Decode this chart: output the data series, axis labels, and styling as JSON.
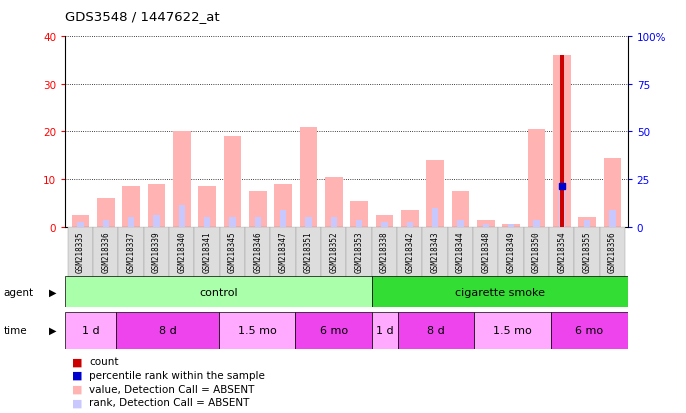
{
  "title": "GDS3548 / 1447622_at",
  "samples": [
    "GSM218335",
    "GSM218336",
    "GSM218337",
    "GSM218339",
    "GSM218340",
    "GSM218341",
    "GSM218345",
    "GSM218346",
    "GSM218347",
    "GSM218351",
    "GSM218352",
    "GSM218353",
    "GSM218338",
    "GSM218342",
    "GSM218343",
    "GSM218344",
    "GSM218348",
    "GSM218349",
    "GSM218350",
    "GSM218354",
    "GSM218355",
    "GSM218356"
  ],
  "pink_values": [
    2.5,
    6.0,
    8.5,
    9.0,
    20.0,
    8.5,
    19.0,
    7.5,
    9.0,
    21.0,
    10.5,
    5.5,
    2.5,
    3.5,
    14.0,
    7.5,
    1.5,
    0.5,
    20.5,
    36.0,
    2.0,
    14.5
  ],
  "blue_rank_values": [
    1.0,
    1.5,
    2.0,
    2.5,
    4.5,
    2.0,
    2.0,
    2.0,
    3.5,
    2.0,
    2.0,
    1.5,
    1.0,
    1.0,
    4.0,
    1.5,
    0.5,
    0.5,
    1.5,
    8.5,
    1.5,
    3.5
  ],
  "red_count": [
    0,
    0,
    0,
    0,
    0,
    0,
    0,
    0,
    0,
    0,
    0,
    0,
    0,
    0,
    0,
    0,
    0,
    0,
    0,
    36.0,
    0,
    0
  ],
  "blue_dot": [
    0,
    0,
    0,
    0,
    0,
    0,
    0,
    0,
    0,
    0,
    0,
    0,
    0,
    0,
    0,
    0,
    0,
    0,
    0,
    8.5,
    0,
    0
  ],
  "ylim_left": [
    0,
    40
  ],
  "ylim_right": [
    0,
    100
  ],
  "yticks_left": [
    0,
    10,
    20,
    30,
    40
  ],
  "yticks_right": [
    0,
    25,
    50,
    75,
    100
  ],
  "ytick_labels_right": [
    "0",
    "25",
    "50",
    "75",
    "100%"
  ],
  "agent_groups": [
    {
      "label": "control",
      "start": 0,
      "end": 12,
      "color": "#AAFFAA"
    },
    {
      "label": "cigarette smoke",
      "start": 12,
      "end": 22,
      "color": "#33DD33"
    }
  ],
  "time_groups": [
    {
      "label": "1 d",
      "start": 0,
      "end": 2,
      "color": "#FFAAFF"
    },
    {
      "label": "8 d",
      "start": 2,
      "end": 6,
      "color": "#EE44EE"
    },
    {
      "label": "1.5 mo",
      "start": 6,
      "end": 9,
      "color": "#FFAAFF"
    },
    {
      "label": "6 mo",
      "start": 9,
      "end": 12,
      "color": "#EE44EE"
    },
    {
      "label": "1 d",
      "start": 12,
      "end": 13,
      "color": "#FFAAFF"
    },
    {
      "label": "8 d",
      "start": 13,
      "end": 16,
      "color": "#EE44EE"
    },
    {
      "label": "1.5 mo",
      "start": 16,
      "end": 19,
      "color": "#FFAAFF"
    },
    {
      "label": "6 mo",
      "start": 19,
      "end": 22,
      "color": "#EE44EE"
    }
  ],
  "pink_color": "#FFB3B3",
  "lavender_color": "#C8C8FF",
  "red_color": "#CC0000",
  "blue_color": "#0000CC",
  "bg_color": "#FFFFFF",
  "xticklabel_bg": "#DDDDDD",
  "legend_items": [
    {
      "color": "#CC0000",
      "label": "count"
    },
    {
      "color": "#0000CC",
      "label": "percentile rank within the sample"
    },
    {
      "color": "#FFB3B3",
      "label": "value, Detection Call = ABSENT"
    },
    {
      "color": "#C8C8FF",
      "label": "rank, Detection Call = ABSENT"
    }
  ]
}
